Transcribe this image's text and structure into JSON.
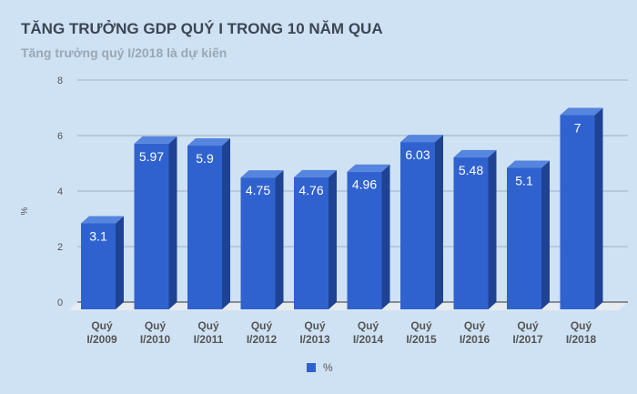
{
  "chart_data": {
    "type": "bar",
    "title": "TĂNG TRƯỞNG GDP QUÝ I TRONG 10 NĂM QUA",
    "subtitle": "Tăng trưởng quý I/2018 là dự kiến",
    "categories": [
      "Quý I/2009",
      "Quý I/2010",
      "Quý I/2011",
      "Quý I/2012",
      "Quý I/2013",
      "Quý I/2014",
      "Quý I/2015",
      "Quý I/2016",
      "Quý I/2017",
      "Quý I/2018"
    ],
    "series": [
      {
        "name": "%",
        "values": [
          3.1,
          5.97,
          5.9,
          4.75,
          4.76,
          4.96,
          6.03,
          5.48,
          5.1,
          7
        ]
      }
    ],
    "data_labels": [
      "3.1",
      "5.97",
      "5.9",
      "4.75",
      "4.76",
      "4.96",
      "6.03",
      "5.48",
      "5.1",
      "7"
    ],
    "ylabel": "%",
    "ylim": [
      0,
      8
    ],
    "yticks": [
      0,
      2,
      4,
      6,
      8
    ],
    "grid": true,
    "legend": "bottom",
    "style": "3d-bar",
    "colors": {
      "front": "#3062cf",
      "side": "#1f4392",
      "top": "#5585de",
      "floor": "#e6ebf0",
      "background": "#cfe2f3"
    }
  }
}
